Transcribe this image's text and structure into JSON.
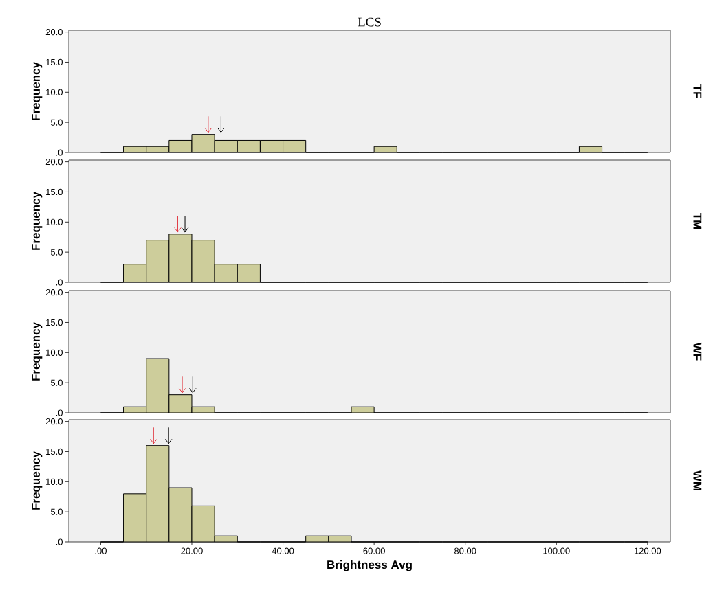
{
  "chart_data": [
    {
      "type": "histogram",
      "title": "LCS",
      "ylabel": "Frequency",
      "y2label": "TF",
      "color": "#cdcd9b",
      "bins": [
        0,
        5,
        10,
        15,
        20,
        25,
        30,
        35,
        40,
        45,
        50,
        55,
        60,
        65,
        70,
        75,
        80,
        85,
        90,
        95,
        100,
        105,
        110,
        115,
        120
      ],
      "values": [
        0,
        1,
        1,
        2,
        3,
        2,
        2,
        2,
        2,
        0,
        0,
        0,
        1,
        0,
        0,
        0,
        0,
        0,
        0,
        0,
        0,
        1,
        0,
        0
      ],
      "xlim": [
        -7,
        125
      ],
      "ylim": [
        0,
        20.3
      ],
      "yticks": [
        {
          "value": 0,
          "label": ".0"
        },
        {
          "value": 5,
          "label": "5.0"
        },
        {
          "value": 10,
          "label": "10.0"
        },
        {
          "value": 15,
          "label": "15.0"
        },
        {
          "value": 20,
          "label": "20.0"
        }
      ],
      "tick_labels": "y",
      "ref_lines": [
        {
          "axis": "x",
          "value": 23.6,
          "color": "#e0303a"
        },
        {
          "axis": "x",
          "value": 26.4,
          "color": "#000000"
        }
      ]
    },
    {
      "type": "histogram",
      "ylabel": "Frequency",
      "y2label": "TM",
      "color": "#cdcd9b",
      "bins": [
        0,
        5,
        10,
        15,
        20,
        25,
        30,
        35,
        40,
        45,
        50,
        55,
        60,
        65,
        70,
        75,
        80,
        85,
        90,
        95,
        100,
        105,
        110,
        115,
        120
      ],
      "values": [
        0,
        3,
        7,
        8,
        7,
        3,
        3,
        0,
        0,
        0,
        0,
        0,
        0,
        0,
        0,
        0,
        0,
        0,
        0,
        0,
        0,
        0,
        0,
        0
      ],
      "xlim": [
        -7,
        125
      ],
      "ylim": [
        0,
        20.3
      ],
      "yticks": [
        {
          "value": 0,
          "label": ".0"
        },
        {
          "value": 5,
          "label": "5.0"
        },
        {
          "value": 10,
          "label": "10.0"
        },
        {
          "value": 15,
          "label": "15.0"
        },
        {
          "value": 20,
          "label": "20.0"
        }
      ],
      "tick_labels": "y",
      "ref_lines": [
        {
          "axis": "x",
          "value": 16.9,
          "color": "#e0303a"
        },
        {
          "axis": "x",
          "value": 18.5,
          "color": "#000000"
        }
      ]
    },
    {
      "type": "histogram",
      "ylabel": "Frequency",
      "y2label": "WF",
      "color": "#cdcd9b",
      "bins": [
        0,
        5,
        10,
        15,
        20,
        25,
        30,
        35,
        40,
        45,
        50,
        55,
        60,
        65,
        70,
        75,
        80,
        85,
        90,
        95,
        100,
        105,
        110,
        115,
        120
      ],
      "values": [
        0,
        1,
        9,
        3,
        1,
        0,
        0,
        0,
        0,
        0,
        0,
        1,
        0,
        0,
        0,
        0,
        0,
        0,
        0,
        0,
        0,
        0,
        0,
        0
      ],
      "xlim": [
        -7,
        125
      ],
      "ylim": [
        0,
        20.3
      ],
      "yticks": [
        {
          "value": 0,
          "label": ".0"
        },
        {
          "value": 5,
          "label": "5.0"
        },
        {
          "value": 10,
          "label": "10.0"
        },
        {
          "value": 15,
          "label": "15.0"
        },
        {
          "value": 20,
          "label": "20.0"
        }
      ],
      "tick_labels": "y",
      "ref_lines": [
        {
          "axis": "x",
          "value": 17.9,
          "color": "#e0303a"
        },
        {
          "axis": "x",
          "value": 20.2,
          "color": "#000000"
        }
      ]
    },
    {
      "type": "histogram",
      "ylabel": "Frequency",
      "y2label": "WM",
      "xlabel": "Brightness Avg",
      "color": "#cdcd9b",
      "bins": [
        0,
        5,
        10,
        15,
        20,
        25,
        30,
        35,
        40,
        45,
        50,
        55,
        60,
        65,
        70,
        75,
        80,
        85,
        90,
        95,
        100,
        105,
        110,
        115,
        120
      ],
      "values": [
        0,
        8,
        16,
        9,
        6,
        1,
        0,
        0,
        0,
        1,
        1,
        0,
        0,
        0,
        0,
        0,
        0,
        0,
        0,
        0,
        0,
        0,
        0,
        0
      ],
      "xlim": [
        -7,
        125
      ],
      "ylim": [
        0,
        20.3
      ],
      "xticks": [
        {
          "value": 0,
          "label": ".00"
        },
        {
          "value": 20,
          "label": "20.00"
        },
        {
          "value": 40,
          "label": "40.00"
        },
        {
          "value": 60,
          "label": "60.00"
        },
        {
          "value": 80,
          "label": "80.00"
        },
        {
          "value": 100,
          "label": "100.00"
        },
        {
          "value": 120,
          "label": "120.00"
        }
      ],
      "yticks": [
        {
          "value": 0,
          "label": ".0"
        },
        {
          "value": 5,
          "label": "5.0"
        },
        {
          "value": 10,
          "label": "10.0"
        },
        {
          "value": 15,
          "label": "15.0"
        },
        {
          "value": 20,
          "label": "20.0"
        }
      ],
      "ref_lines": [
        {
          "axis": "x",
          "value": 11.6,
          "color": "#e0303a"
        },
        {
          "axis": "x",
          "value": 14.9,
          "color": "#000000"
        }
      ]
    }
  ]
}
